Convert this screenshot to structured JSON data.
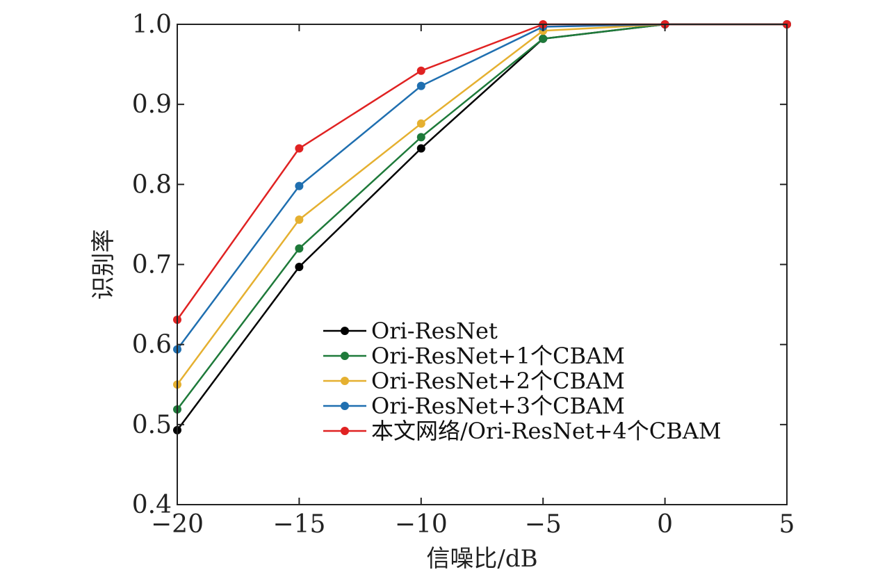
{
  "chart_data": {
    "type": "line",
    "title": "",
    "xlabel": "信噪比/dB",
    "ylabel": "识别率",
    "x": [
      -20,
      -15,
      -10,
      -5,
      0,
      5
    ],
    "xlim": [
      -20,
      5
    ],
    "ylim": [
      0.4,
      1.0
    ],
    "xticks": [
      "−20",
      "−15",
      "−10",
      "−5",
      "0",
      "5"
    ],
    "yticks": [
      "0.4",
      "0.5",
      "0.6",
      "0.7",
      "0.8",
      "0.9",
      "1.0"
    ],
    "grid": false,
    "legend_position": "lower-right",
    "series": [
      {
        "name": "Ori-ResNet",
        "color": "#000000",
        "values": [
          0.493,
          0.697,
          0.845,
          0.982,
          1.0,
          1.0
        ]
      },
      {
        "name": "Ori-ResNet+1个CBAM",
        "color": "#1e7a3a",
        "values": [
          0.519,
          0.72,
          0.859,
          0.982,
          1.0,
          1.0
        ]
      },
      {
        "name": "Ori-ResNet+2个CBAM",
        "color": "#e5b030",
        "values": [
          0.55,
          0.756,
          0.876,
          0.992,
          1.0,
          1.0
        ]
      },
      {
        "name": "Ori-ResNet+3个CBAM",
        "color": "#1f6fb0",
        "values": [
          0.594,
          0.798,
          0.923,
          0.997,
          1.0,
          1.0
        ]
      },
      {
        "name": "本文网络/Ori-ResNet+4个CBAM",
        "color": "#e02222",
        "values": [
          0.631,
          0.845,
          0.942,
          1.0,
          1.0,
          1.0
        ]
      }
    ]
  }
}
